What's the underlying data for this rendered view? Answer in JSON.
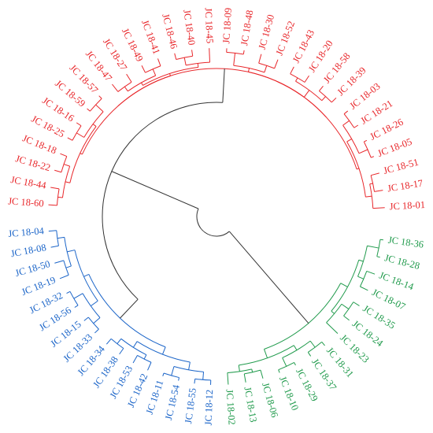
{
  "colors": {
    "red": "#e8262a",
    "green": "#1f9a4b",
    "blue": "#1a64c8",
    "gray": "#333333"
  },
  "clusters": [
    {
      "name": "red-cluster",
      "color": "red",
      "leaves": [
        "JC 18-01",
        "JC 18-17",
        "JC 18-51",
        "JC 18-05",
        "JC 18-26",
        "JC 18-21",
        "JC 18-03",
        "JC 18-39",
        "JC 18-58",
        "JC 18-20",
        "JC 18-43",
        "JC 18-52",
        "JC 18-30",
        "JC 18-48",
        "JC 18-09",
        "JC 18-45",
        "JC 18-40",
        "JC 18-46",
        "JC 18-41",
        "JC 18-49",
        "JC 18-27",
        "JC 18-47",
        "JC 18-57",
        "JC 18-59",
        "JC 18-16",
        "JC 18-25",
        "JC 18-18",
        "JC 18-22",
        "JC 18-44",
        "JC 18-60"
      ]
    },
    {
      "name": "blue-cluster",
      "color": "blue",
      "leaves": [
        "JC 18-04",
        "JC 18-08",
        "JC 18-50",
        "JC 18-19",
        "JC 18-32",
        "JC 18-56",
        "JC 18-15",
        "JC 18-33",
        "JC 18-34",
        "JC 18-38",
        "JC 18-53",
        "JC 18-42",
        "JC 18-11",
        "JC 18-54",
        "JC 18-55",
        "JC 18-12"
      ]
    },
    {
      "name": "green-cluster",
      "color": "green",
      "leaves": [
        "JC 18-02",
        "JC 18-13",
        "JC 18-06",
        "JC 18-10",
        "JC 18-29",
        "JC 18-37",
        "JC 18-31",
        "JC 18-23",
        "JC 18-24",
        "JC 18-35",
        "JC 18-07",
        "JC 18-14",
        "JC 18-28",
        "JC 18-36"
      ]
    }
  ]
}
